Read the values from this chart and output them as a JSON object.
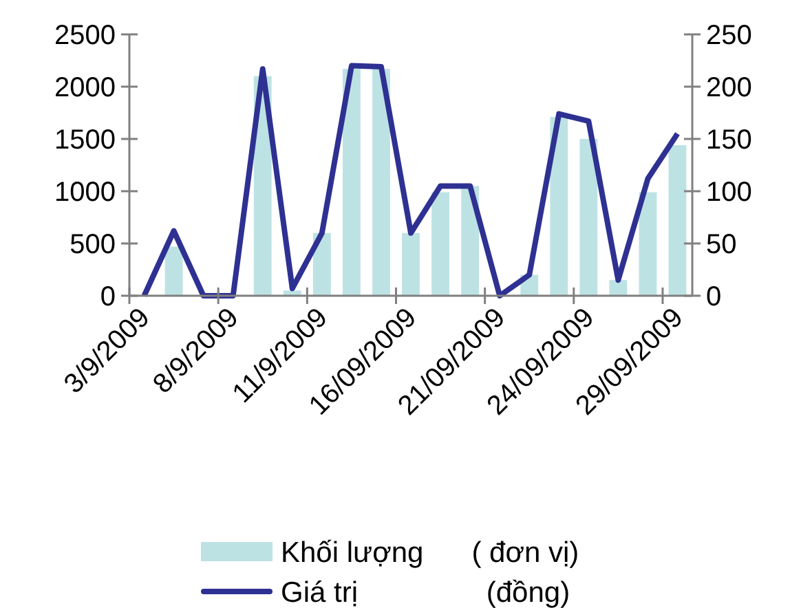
{
  "chart_data": {
    "type": "bar",
    "categories": [
      "3/9/2009",
      null,
      null,
      "8/9/2009",
      null,
      null,
      "11/9/2009",
      null,
      null,
      "16/09/2009",
      null,
      null,
      "21/09/2009",
      null,
      null,
      "24/09/2009",
      null,
      null,
      "29/09/2009"
    ],
    "series": [
      {
        "name": "Khối lượng      ( đơn vị)",
        "color": "#bde2e4",
        "values": [
          0,
          470,
          0,
          0,
          2100,
          50,
          600,
          2170,
          2170,
          600,
          990,
          1050,
          0,
          200,
          1710,
          1500,
          150,
          990,
          1440
        ]
      },
      {
        "name": "Giá trị                (đồng)",
        "type": "line",
        "axis": "y2",
        "color": "#2e3192",
        "values": [
          0,
          62,
          0,
          0,
          217,
          7,
          60,
          220,
          219,
          60,
          105,
          105,
          0,
          20,
          174,
          167,
          15,
          112,
          155
        ]
      }
    ],
    "ylim": [
      0,
      2500
    ],
    "yticks": [
      0,
      500,
      1000,
      1500,
      2000,
      2500
    ],
    "y2lim": [
      0,
      250
    ],
    "y2ticks": [
      0,
      50,
      100,
      150,
      200,
      250
    ],
    "grid": false,
    "legend": "bottom",
    "marker": "none",
    "line_style": "solid"
  }
}
